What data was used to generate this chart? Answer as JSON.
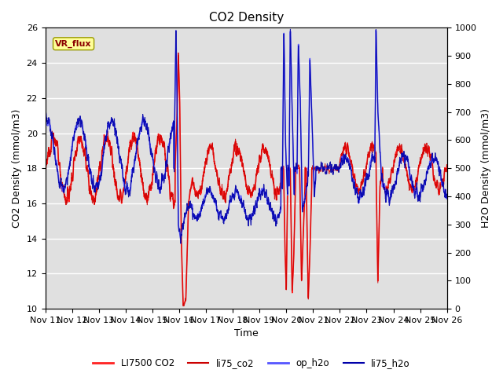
{
  "title": "CO2 Density",
  "xlabel": "Time",
  "ylabel_left": "CO2 Density (mmol/m3)",
  "ylabel_right": "H2O Density (mmol/m3)",
  "ylim_left": [
    10,
    26
  ],
  "ylim_right": [
    0,
    1000
  ],
  "yticks_left": [
    10,
    12,
    14,
    16,
    18,
    20,
    22,
    24,
    26
  ],
  "yticks_right": [
    0,
    100,
    200,
    300,
    400,
    500,
    600,
    700,
    800,
    900,
    1000
  ],
  "xtick_labels": [
    "Nov 11",
    "Nov 12",
    "Nov 13",
    "Nov 14",
    "Nov 15",
    "Nov 16",
    "Nov 17",
    "Nov 18",
    "Nov 19",
    "Nov 20",
    "Nov 21",
    "Nov 22",
    "Nov 23",
    "Nov 24",
    "Nov 25",
    "Nov 26"
  ],
  "vr_flux_label": "VR_flux",
  "axes_background": "#E0E0E0",
  "grid_color": "#FFFFFF",
  "title_fontsize": 11,
  "label_fontsize": 9,
  "tick_fontsize": 8,
  "figsize": [
    6.4,
    4.8
  ],
  "dpi": 100
}
